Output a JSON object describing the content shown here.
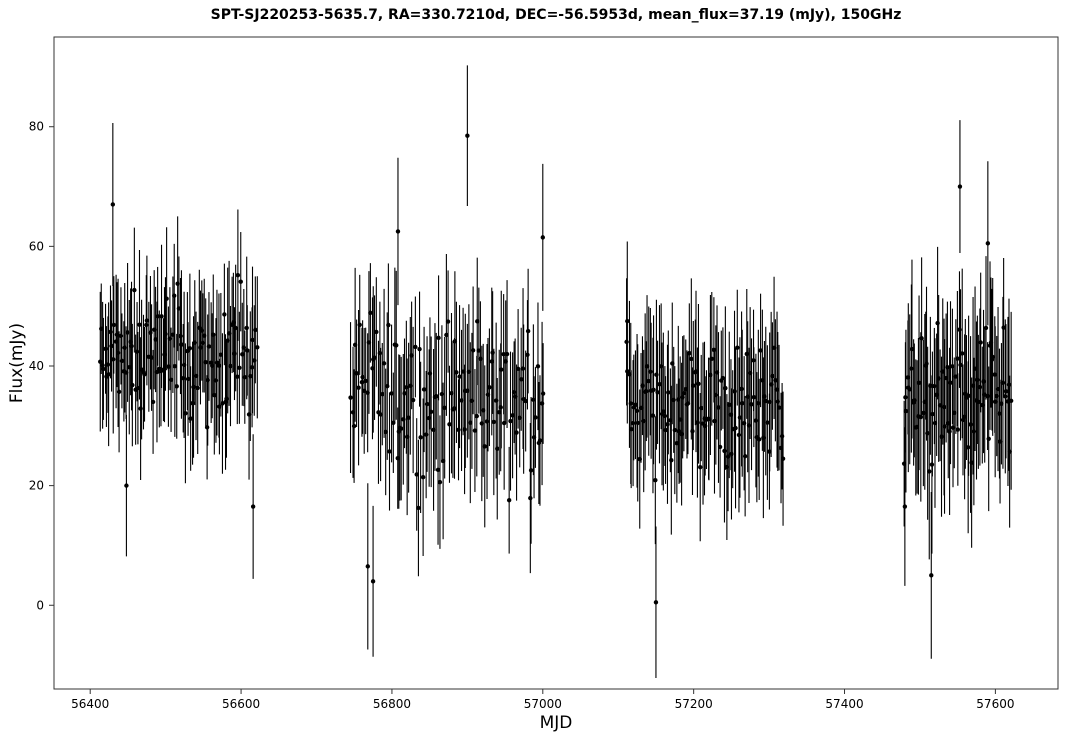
{
  "chart_data": {
    "type": "scatter",
    "title": "SPT-SJ220253-5635.7, RA=330.7210d, DEC=-56.5953d, mean_flux=37.19 (mJy), 150GHz",
    "xlabel": "MJD",
    "ylabel": "Flux(mJy)",
    "xlim": [
      56352,
      57683
    ],
    "ylim": [
      -14,
      95
    ],
    "xticks": [
      56400,
      56600,
      56800,
      57000,
      57200,
      57400,
      57600
    ],
    "yticks": [
      0,
      20,
      40,
      60,
      80
    ],
    "grid": false,
    "legend": false,
    "colors": {
      "marker": "#000000",
      "errorbar": "#000000",
      "frame": "#333333"
    },
    "series": [
      {
        "error_bars": true,
        "seasons": [
          {
            "x_start": 56412,
            "x_end": 56622,
            "points": 120,
            "center": 42,
            "spread": 8,
            "err": 10
          },
          {
            "x_start": 56745,
            "x_end": 57002,
            "points": 130,
            "center": 35,
            "spread": 10,
            "err": 11
          },
          {
            "x_start": 57110,
            "x_end": 57320,
            "points": 120,
            "center": 33,
            "spread": 9,
            "err": 11
          },
          {
            "x_start": 57478,
            "x_end": 57622,
            "points": 90,
            "center": 34,
            "spread": 10,
            "err": 12
          }
        ],
        "notable_points": [
          {
            "x": 56430,
            "y": 67
          },
          {
            "x": 56448,
            "y": 20
          },
          {
            "x": 56616,
            "y": 16.5
          },
          {
            "x": 56808,
            "y": 62.5
          },
          {
            "x": 56768,
            "y": 6.5
          },
          {
            "x": 56775,
            "y": 4
          },
          {
            "x": 56900,
            "y": 78.5
          },
          {
            "x": 57000,
            "y": 61.5
          },
          {
            "x": 57150,
            "y": 0.5
          },
          {
            "x": 57112,
            "y": 47.5
          },
          {
            "x": 57515,
            "y": 5
          },
          {
            "x": 57480,
            "y": 16.5
          },
          {
            "x": 57553,
            "y": 70
          },
          {
            "x": 57590,
            "y": 60.5
          }
        ]
      }
    ]
  }
}
